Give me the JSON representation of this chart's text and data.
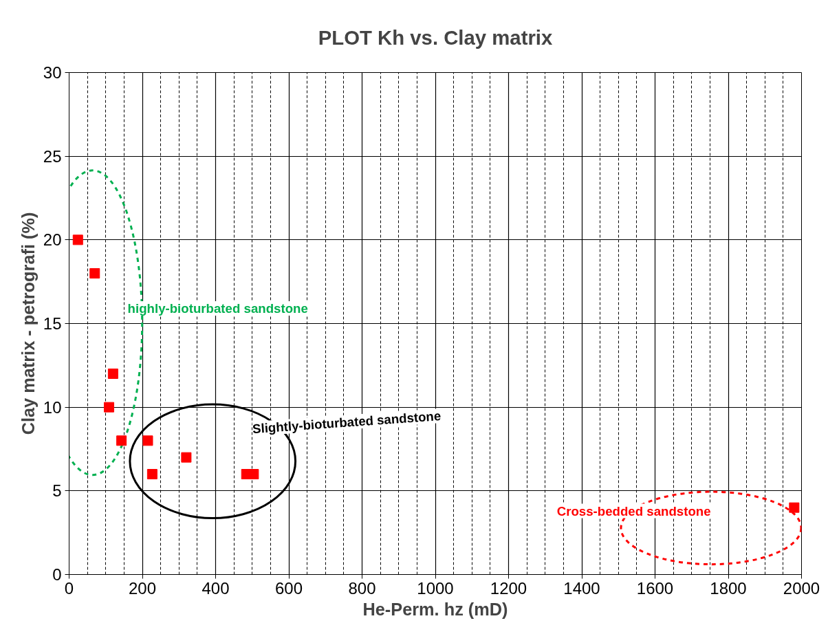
{
  "chart_data": {
    "type": "scatter",
    "title": "PLOT Kh vs. Clay matrix",
    "xlabel": "He-Perm. hz (mD)",
    "ylabel": "Clay matrix - petrografi (%)",
    "x": [
      24,
      70,
      120,
      109,
      143,
      215,
      227,
      320,
      484,
      504,
      1980
    ],
    "series": [
      {
        "color": "#ff0000",
        "values": [
          20,
          18,
          12,
          10,
          8,
          8,
          6,
          7,
          6,
          6,
          4
        ]
      }
    ],
    "xlim": [
      0,
      2000
    ],
    "ylim": [
      0,
      30
    ],
    "xticks": [
      0,
      200,
      400,
      600,
      800,
      1000,
      1200,
      1400,
      1600,
      1800,
      2000
    ],
    "yticks": [
      0,
      5,
      10,
      15,
      20,
      25,
      30
    ],
    "grid": true,
    "marker": "square",
    "annotations": [
      "highly-bioturbated sandstone",
      "Slightly-bioturbated sandstone",
      "Cross-bedded sandstone"
    ]
  }
}
